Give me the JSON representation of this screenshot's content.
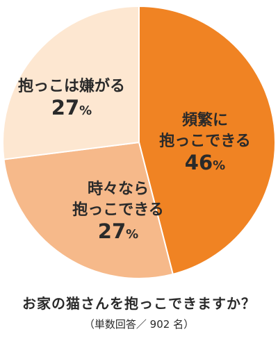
{
  "question": "お家の猫さんを抱っこできますか？",
  "note": "（単数回答／ 902 名）",
  "chart_data": {
    "type": "pie",
    "title": "お家の猫さんを抱っこできますか？",
    "subtitle": "（単数回答／ 902 名）",
    "unit": "%",
    "start": "12 o'clock, clockwise",
    "slices": [
      {
        "lines": [
          "頻繁に",
          "抱っこできる"
        ],
        "value": 46,
        "color": "#f08323"
      },
      {
        "lines": [
          "時々なら",
          "抱っこできる"
        ],
        "value": 27,
        "color": "#f6b98a"
      },
      {
        "lines": [
          "抱っこは嫌がる"
        ],
        "value": 27,
        "color": "#fde7d1"
      }
    ]
  }
}
